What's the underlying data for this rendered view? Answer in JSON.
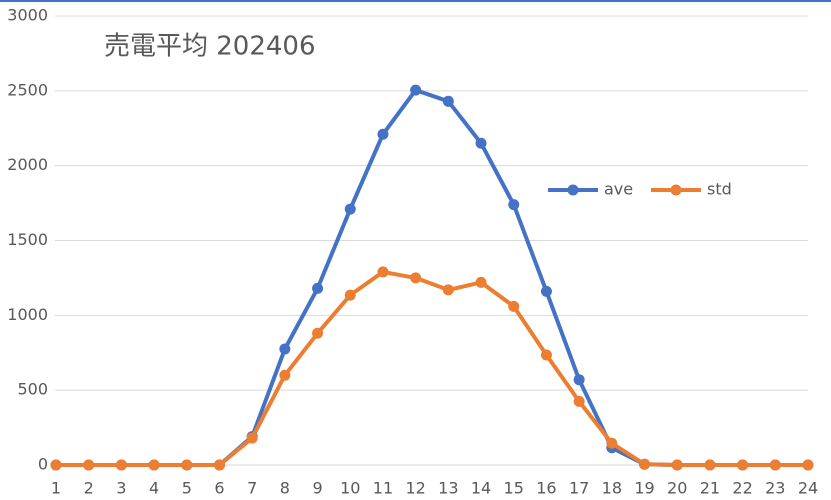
{
  "chart_data": {
    "type": "line",
    "title": "売電平均 202406",
    "categories": [
      "1",
      "2",
      "3",
      "4",
      "5",
      "6",
      "7",
      "8",
      "9",
      "10",
      "11",
      "12",
      "13",
      "14",
      "15",
      "16",
      "17",
      "18",
      "19",
      "20",
      "21",
      "22",
      "23",
      "24"
    ],
    "series": [
      {
        "name": "ave",
        "color": "#4472c4",
        "values": [
          0,
          0,
          0,
          0,
          0,
          0,
          190,
          775,
          1180,
          1710,
          2210,
          2505,
          2430,
          2150,
          1740,
          1160,
          570,
          115,
          5,
          0,
          0,
          0,
          0,
          0
        ]
      },
      {
        "name": "std",
        "color": "#ed7d31",
        "values": [
          0,
          0,
          0,
          0,
          0,
          0,
          180,
          600,
          880,
          1135,
          1290,
          1250,
          1170,
          1220,
          1060,
          735,
          425,
          145,
          5,
          0,
          0,
          0,
          0,
          0
        ]
      }
    ],
    "ylim": [
      0,
      3000
    ],
    "yticks": [
      0,
      500,
      1000,
      1500,
      2000,
      2500,
      3000
    ],
    "grid": true,
    "legend": "right"
  }
}
